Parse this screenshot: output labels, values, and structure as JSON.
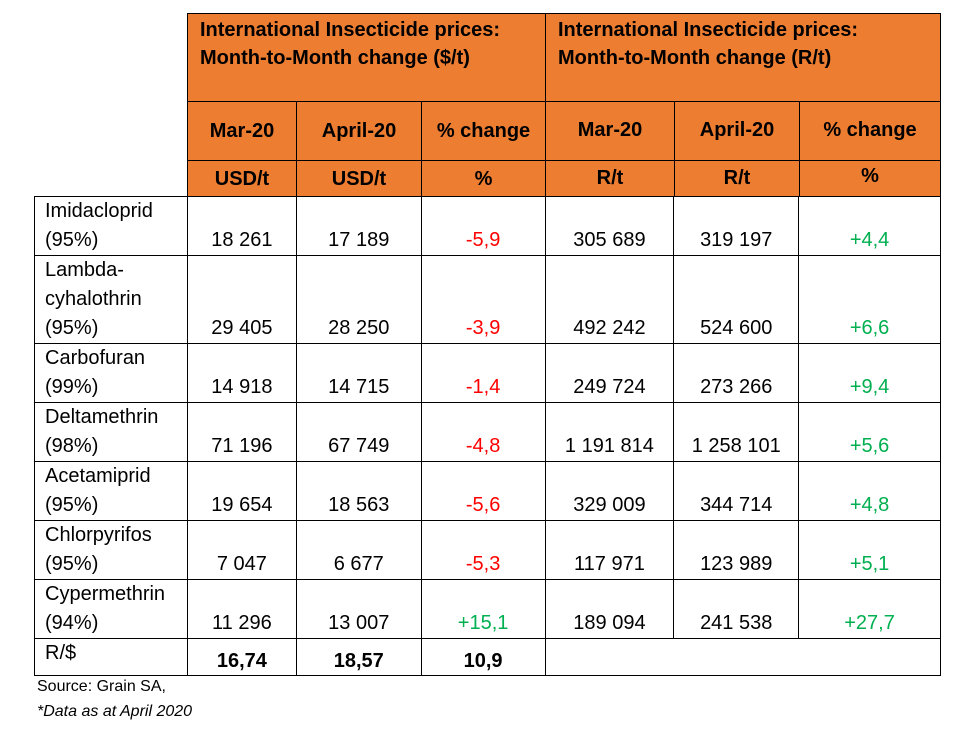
{
  "header": {
    "usd_group_title_line1": "International Insecticide prices:",
    "usd_group_title_line2": "Month-to-Month change ($/t)",
    "rand_group_title_line1": "International Insecticide prices:",
    "rand_group_title_line2": "Month-to-Month change (R/t)",
    "columns": [
      "Mar-20",
      "April-20",
      "% change",
      "Mar-20",
      "April-20",
      "% change"
    ],
    "units": [
      "USD/t",
      "USD/t",
      "%",
      "R/t",
      "R/t",
      "%"
    ]
  },
  "rows": [
    {
      "name_line1": "Imidacloprid",
      "name_line2": "(95%)",
      "name_line3": "",
      "usd_mar": "18 261",
      "usd_apr": "17 189",
      "usd_pct": "-5,9",
      "r_mar": "305 689",
      "r_apr": "319 197",
      "r_pct": "+4,4"
    },
    {
      "name_line1": "Lambda-",
      "name_line2": "cyhalothrin",
      "name_line3": "(95%)",
      "usd_mar": "29 405",
      "usd_apr": "28 250",
      "usd_pct": "-3,9",
      "r_mar": "492 242",
      "r_apr": "524 600",
      "r_pct": "+6,6"
    },
    {
      "name_line1": "Carbofuran",
      "name_line2": "(99%)",
      "name_line3": "",
      "usd_mar": "14 918",
      "usd_apr": "14 715",
      "usd_pct": "-1,4",
      "r_mar": "249 724",
      "r_apr": "273 266",
      "r_pct": "+9,4"
    },
    {
      "name_line1": "Deltamethrin",
      "name_line2": "(98%)",
      "name_line3": "",
      "usd_mar": "71 196",
      "usd_apr": "67 749",
      "usd_pct": "-4,8",
      "r_mar": "1 191 814",
      "r_apr": "1 258 101",
      "r_pct": "+5,6"
    },
    {
      "name_line1": "Acetamiprid",
      "name_line2": "(95%)",
      "name_line3": "",
      "usd_mar": "19 654",
      "usd_apr": "18 563",
      "usd_pct": "-5,6",
      "r_mar": "329 009",
      "r_apr": "344 714",
      "r_pct": "+4,8"
    },
    {
      "name_line1": "Chlorpyrifos",
      "name_line2": "(95%)",
      "name_line3": "",
      "usd_mar": "7 047",
      "usd_apr": "6 677",
      "usd_pct": "-5,3",
      "r_mar": "117 971",
      "r_apr": "123 989",
      "r_pct": "+5,1"
    },
    {
      "name_line1": "Cypermethrin",
      "name_line2": "(94%)",
      "name_line3": "",
      "usd_mar": "11 296",
      "usd_apr": "13 007",
      "usd_pct": "+15,1",
      "r_mar": "189 094",
      "r_apr": "241 538",
      "r_pct": "+27,7"
    }
  ],
  "exchange": {
    "label": "R/$",
    "mar": "16,74",
    "apr": "18,57",
    "pct": "10,9"
  },
  "footer": {
    "source": "Source: Grain SA,",
    "note": "*Data as at April 2020"
  },
  "colors": {
    "header_fill": "#ED7D31",
    "negative": "#FF0000",
    "positive": "#00B050"
  }
}
